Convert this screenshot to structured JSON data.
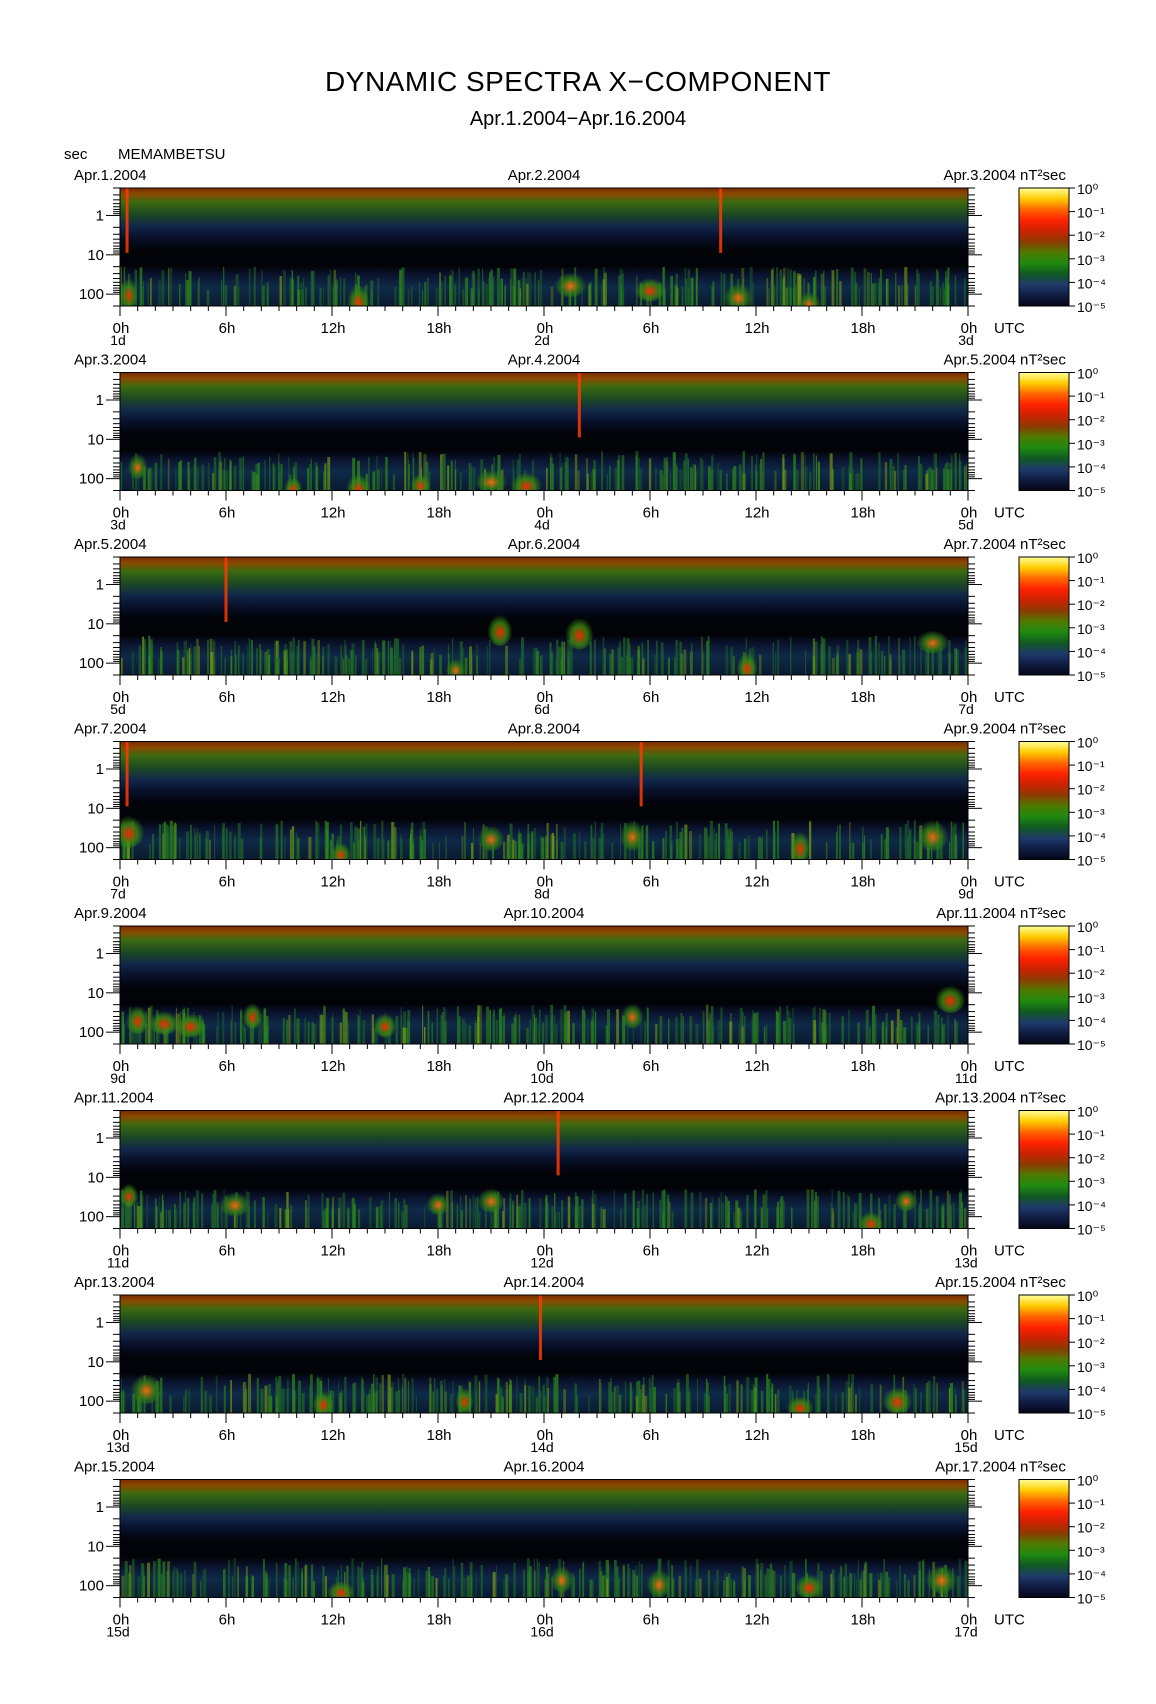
{
  "header": {
    "title": "DYNAMIC SPECTRA X−COMPONENT",
    "subtitle": "Apr.1.2004−Apr.16.2004",
    "unit": "sec",
    "station": "MEMAMBETSU"
  },
  "colorbar": {
    "unit": "nT²sec",
    "labels": [
      "10⁰",
      "10⁻¹",
      "10⁻²",
      "10⁻³",
      "10⁻⁴",
      "10⁻⁵"
    ],
    "stops": [
      "#ffff99",
      "#ffcc00",
      "#ff6600",
      "#ff2200",
      "#cc2200",
      "#8c3a00",
      "#4f7a00",
      "#1f8a10",
      "#0f5a20",
      "#1f3a6a",
      "#101c44",
      "#040614"
    ]
  },
  "chart_data": {
    "type": "heatmap",
    "y_axis": {
      "label": "sec",
      "ticks": [
        "1",
        "10",
        "100"
      ],
      "scale": "log",
      "range_sec": [
        0.2,
        200
      ]
    },
    "x_axis": {
      "ticks": [
        "0h",
        "6h",
        "12h",
        "18h",
        "0h",
        "6h",
        "12h",
        "18h",
        "0h"
      ],
      "suffix": "UTC"
    },
    "color_scale": {
      "unit": "nT²sec",
      "min": 1e-05,
      "max": 1
    },
    "panels": [
      {
        "dates": [
          "Apr.1.2004",
          "Apr.2.2004",
          "Apr.3.2004"
        ],
        "days": [
          "1d",
          "2d",
          "3d"
        ],
        "bursts": [
          [
            0.5,
            100,
            "r"
          ],
          [
            13.5,
            150,
            "r"
          ],
          [
            25.5,
            60,
            "o"
          ],
          [
            30,
            80,
            "r"
          ],
          [
            35,
            120,
            "o"
          ],
          [
            39,
            180,
            "o"
          ]
        ],
        "spikes": [
          0.4,
          34
        ]
      },
      {
        "dates": [
          "Apr.3.2004",
          "Apr.4.2004",
          "Apr.5.2004"
        ],
        "days": [
          "3d",
          "4d",
          "5d"
        ],
        "bursts": [
          [
            1,
            50,
            "o"
          ],
          [
            13.5,
            180,
            "r"
          ],
          [
            17,
            150,
            "r"
          ],
          [
            21,
            120,
            "o"
          ],
          [
            23,
            150,
            "r"
          ],
          [
            9.8,
            180,
            "r"
          ]
        ],
        "spikes": [
          26
        ]
      },
      {
        "dates": [
          "Apr.5.2004",
          "Apr.6.2004",
          "Apr.7.2004"
        ],
        "days": [
          "5d",
          "6d",
          "7d"
        ],
        "bursts": [
          [
            19,
            150,
            "o"
          ],
          [
            21.5,
            15,
            "r"
          ],
          [
            26,
            18,
            "r"
          ],
          [
            35.5,
            130,
            "r"
          ],
          [
            46,
            30,
            "o"
          ]
        ],
        "spikes": [
          6
        ]
      },
      {
        "dates": [
          "Apr.7.2004",
          "Apr.8.2004",
          "Apr.9.2004"
        ],
        "days": [
          "7d",
          "8d",
          "9d"
        ],
        "bursts": [
          [
            0.5,
            40,
            "r"
          ],
          [
            12.5,
            150,
            "r"
          ],
          [
            21,
            60,
            "o"
          ],
          [
            29,
            50,
            "o"
          ],
          [
            38.5,
            100,
            "r"
          ],
          [
            46,
            50,
            "o"
          ]
        ],
        "spikes": [
          0.4,
          29.5
        ]
      },
      {
        "dates": [
          "Apr.9.2004",
          "Apr.10.2004",
          "Apr.11.2004"
        ],
        "days": [
          "9d",
          "10d",
          "11d"
        ],
        "bursts": [
          [
            1,
            50,
            "r"
          ],
          [
            2.5,
            60,
            "r"
          ],
          [
            4,
            70,
            "r"
          ],
          [
            7.5,
            40,
            "r"
          ],
          [
            15,
            70,
            "r"
          ],
          [
            29,
            40,
            "o"
          ],
          [
            47,
            15,
            "r"
          ]
        ],
        "spikes": []
      },
      {
        "dates": [
          "Apr.11.2004",
          "Apr.12.2004",
          "Apr.13.2004"
        ],
        "days": [
          "11d",
          "12d",
          "13d"
        ],
        "bursts": [
          [
            0.5,
            30,
            "r"
          ],
          [
            6.5,
            50,
            "o"
          ],
          [
            18,
            50,
            "o"
          ],
          [
            21,
            40,
            "o"
          ],
          [
            42.5,
            150,
            "r"
          ],
          [
            44.5,
            40,
            "o"
          ]
        ],
        "spikes": [
          24.8
        ]
      },
      {
        "dates": [
          "Apr.13.2004",
          "Apr.14.2004",
          "Apr.15.2004"
        ],
        "days": [
          "13d",
          "14d",
          "15d"
        ],
        "bursts": [
          [
            1.5,
            50,
            "o"
          ],
          [
            11.5,
            120,
            "r"
          ],
          [
            19.5,
            100,
            "r"
          ],
          [
            38.5,
            150,
            "r"
          ],
          [
            44,
            100,
            "r"
          ]
        ],
        "spikes": [
          23.8
        ]
      },
      {
        "dates": [
          "Apr.15.2004",
          "Apr.16.2004",
          "Apr.17.2004"
        ],
        "days": [
          "15d",
          "16d",
          "17d"
        ],
        "bursts": [
          [
            12.5,
            150,
            "r"
          ],
          [
            25,
            70,
            "o"
          ],
          [
            30.5,
            90,
            "o"
          ],
          [
            39,
            110,
            "r"
          ],
          [
            46.5,
            70,
            "o"
          ]
        ],
        "spikes": []
      }
    ]
  }
}
